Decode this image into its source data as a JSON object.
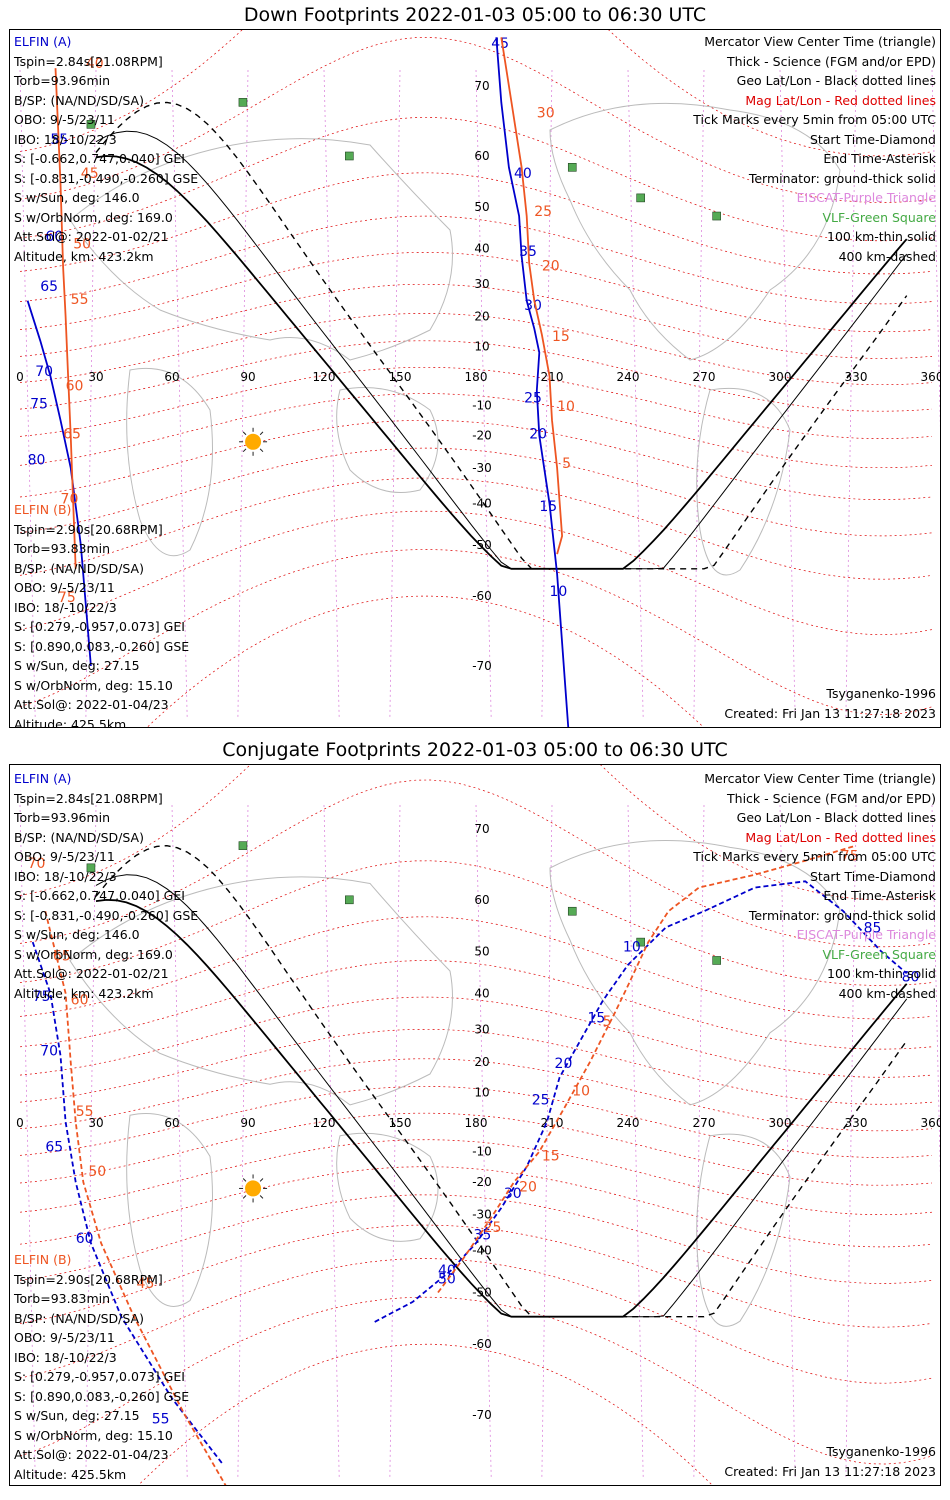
{
  "panels": [
    {
      "title": "Down Footprints 2022-01-03 05:00 to 06:30 UTC",
      "legend": {
        "view": "Mercator View Center Time (triangle)",
        "thick": "Thick - Science (FGM and/or EPD)",
        "geo": "Geo Lat/Lon - Black dotted lines",
        "mag": "Mag Lat/Lon - Red dotted lines",
        "ticks": "Tick Marks every 5min from 05:00 UTC",
        "start": "Start Time-Diamond",
        "end": "End Time-Asterisk",
        "terminator": "Terminator: ground-thick solid",
        "eiscat": "EISCAT-Purple Triangle",
        "vlf": "VLF-Green Square",
        "km100": "100 km-thin solid",
        "km400": "400 km-dashed"
      },
      "sat_a": {
        "name": "ELFIN (A)",
        "tspin": "Tspin=2.84s[21.08RPM]",
        "torb": "Torb=93.96min",
        "bsp": "B/SP: (NA/ND/SD/SA)",
        "obo": "OBO: 9/-5/23/11",
        "ibo": "IBO: 18/-10/22/3",
        "s_gei": "S: [-0.662,0.747,0.040] GEI",
        "s_gse": "S: [-0.831,-0.490,-0.260] GSE",
        "sw_sun": "S w/Sun, deg: 146.0",
        "sw_orb": "S w/OrbNorm, deg: 169.0",
        "attsol": "Att.Sol@: 2022-01-02/21",
        "alt": "Altitude, km: 423.2km"
      },
      "sat_b": {
        "name": "ELFIN (B)",
        "tspin": "Tspin=2.90s[20.68RPM]",
        "torb": "Torb=93.83min",
        "bsp": "B/SP: (NA/ND/SD/SA)",
        "obo": "OBO: 9/-5/23/11",
        "ibo": "IBO: 18/-10/22/3",
        "s_gei": "S: [0.279,-0.957,0.073] GEI",
        "s_gse": "S: [0.890,0.083,-0.260] GSE",
        "sw_sun": "S w/Sun, deg: 27.15",
        "sw_orb": "S w/OrbNorm, deg: 15.10",
        "attsol": "Att.Sol@: 2022-01-04/23",
        "alt": "Altitude: 425.5km"
      },
      "model": "Tsyganenko-1996",
      "created": "Created: Fri Jan 13 11:27:18 2023"
    },
    {
      "title": "Conjugate Footprints 2022-01-03 05:00 to 06:30 UTC",
      "legend": {
        "view": "Mercator View Center Time (triangle)",
        "thick": "Thick - Science (FGM and/or EPD)",
        "geo": "Geo Lat/Lon - Black dotted lines",
        "mag": "Mag Lat/Lon - Red dotted lines",
        "ticks": "Tick Marks every 5min from 05:00 UTC",
        "start": "Start Time-Diamond",
        "end": "End Time-Asterisk",
        "terminator": "Terminator: ground-thick solid",
        "eiscat": "EISCAT-Purple Triangle",
        "vlf": "VLF-Green Square",
        "km100": "100 km-thin solid",
        "km400": "400 km-dashed"
      },
      "sat_a": {
        "name": "ELFIN (A)",
        "tspin": "Tspin=2.84s[21.08RPM]",
        "torb": "Torb=93.96min",
        "bsp": "B/SP: (NA/ND/SD/SA)",
        "obo": "OBO: 9/-5/23/11",
        "ibo": "IBO: 18/-10/22/3",
        "s_gei": "S: [-0.662,0.747,0.040] GEI",
        "s_gse": "S: [-0.831,-0.490,-0.260] GSE",
        "sw_sun": "S w/Sun, deg: 146.0",
        "sw_orb": "S w/OrbNorm, deg: 169.0",
        "attsol": "Att.Sol@: 2022-01-02/21",
        "alt": "Altitude, km: 423.2km"
      },
      "sat_b": {
        "name": "ELFIN (B)",
        "tspin": "Tspin=2.90s[20.68RPM]",
        "torb": "Torb=93.83min",
        "bsp": "B/SP: (NA/ND/SD/SA)",
        "obo": "OBO: 9/-5/23/11",
        "ibo": "IBO: 18/-10/22/3",
        "s_gei": "S: [0.279,-0.957,0.073] GEI",
        "s_gse": "S: [0.890,0.083,-0.260] GSE",
        "sw_sun": "S w/Sun, deg: 27.15",
        "sw_orb": "S w/OrbNorm, deg: 15.10",
        "attsol": "Att.Sol@: 2022-01-04/23",
        "alt": "Altitude: 425.5km"
      },
      "model": "Tsyganenko-1996",
      "created": "Created: Fri Jan 13 11:27:18 2023"
    }
  ],
  "chart_data": [
    {
      "type": "line",
      "title": "Down Footprints 2022-01-03 05:00 to 06:30 UTC",
      "xlim": [
        0,
        360
      ],
      "ylim": [
        -80,
        75
      ],
      "x_ticks": [
        "0",
        "30",
        "60",
        "90",
        "120",
        "150",
        "180",
        "210",
        "240",
        "270",
        "300",
        "330",
        "360"
      ],
      "y_ticks": [
        "70",
        "60",
        "50",
        "40",
        "30",
        "20",
        "10",
        "0",
        "-10",
        "-20",
        "-30",
        "-40",
        "-50",
        "-60",
        "-70"
      ],
      "y_values": [
        70,
        60,
        50,
        40,
        30,
        20,
        10,
        0,
        -10,
        -20,
        -30,
        -40,
        -50,
        -60,
        -70
      ],
      "colors": {
        "sat_a": "#0000cc",
        "sat_b": "#ee5522",
        "mag_grid": "#dd0000",
        "geo_grid": "#000000",
        "eiscat": "#dd88dd",
        "vlf": "#44aa44"
      },
      "series": [
        {
          "name": "ELFIN (A)",
          "points": [
            [
              188,
              75
            ],
            [
              190,
              68
            ],
            [
              193,
              58
            ],
            [
              197,
              48
            ],
            [
              198,
              38
            ],
            [
              200,
              25
            ],
            [
              203,
              16
            ],
            [
              205,
              8
            ],
            [
              204,
              -5
            ],
            [
              205,
              -20
            ],
            [
              209,
              -40
            ],
            [
              212,
              -56
            ],
            [
              218,
              -80
            ]
          ],
          "tick_labels": [
            {
              "label": "45",
              "lon": 186,
              "lat": 74
            },
            {
              "label": "40",
              "lon": 195,
              "lat": 56
            },
            {
              "label": "35",
              "lon": 197,
              "lat": 38
            },
            {
              "label": "30",
              "lon": 199,
              "lat": 22
            },
            {
              "label": "25",
              "lon": 199,
              "lat": -9
            },
            {
              "label": "20",
              "lon": 201,
              "lat": -21
            },
            {
              "label": "15",
              "lon": 205,
              "lat": -42
            },
            {
              "label": "10",
              "lon": 209,
              "lat": -60
            }
          ]
        },
        {
          "name": "ELFIN (B)",
          "points": [
            [
              190,
              75
            ],
            [
              194,
              68
            ],
            [
              198,
              58
            ],
            [
              200,
              48
            ],
            [
              201,
              36
            ],
            [
              203,
              25
            ],
            [
              206,
              14
            ],
            [
              209,
              0
            ],
            [
              210,
              -15
            ],
            [
              212,
              -30
            ],
            [
              214,
              -48
            ],
            [
              212,
              -52
            ]
          ],
          "tick_labels": [
            {
              "label": "30",
              "lon": 204,
              "lat": 66
            },
            {
              "label": "25",
              "lon": 203,
              "lat": 48
            },
            {
              "label": "20",
              "lon": 206,
              "lat": 34
            },
            {
              "label": "15",
              "lon": 210,
              "lat": 12
            },
            {
              "label": "10",
              "lon": 212,
              "lat": -12
            },
            {
              "label": "5",
              "lon": 214,
              "lat": -30
            }
          ]
        },
        {
          "name": "ELFIN (A) west",
          "points": [
            [
              3,
              25
            ],
            [
              8,
              12
            ],
            [
              12,
              0
            ],
            [
              16,
              -15
            ],
            [
              20,
              -30
            ],
            [
              24,
              -50
            ],
            [
              28,
              -70
            ]
          ],
          "tick_labels": [
            {
              "label": "55",
              "lon": 12,
              "lat": 62
            },
            {
              "label": "60",
              "lon": 10,
              "lat": 42
            },
            {
              "label": "65",
              "lon": 8,
              "lat": 28
            },
            {
              "label": "70",
              "lon": 6,
              "lat": 0
            },
            {
              "label": "75",
              "lon": 4,
              "lat": -11
            },
            {
              "label": "80",
              "lon": 3,
              "lat": -29
            }
          ]
        },
        {
          "name": "ELFIN (B) west",
          "points": [
            [
              14,
              72
            ],
            [
              16,
              55
            ],
            [
              17,
              35
            ],
            [
              18,
              20
            ],
            [
              19,
              0
            ],
            [
              20,
              -20
            ],
            [
              21,
              -40
            ],
            [
              22,
              -55
            ]
          ],
          "tick_labels": [
            {
              "label": "40",
              "lon": 26,
              "lat": 72
            },
            {
              "label": "45",
              "lon": 24,
              "lat": 56
            },
            {
              "label": "50",
              "lon": 21,
              "lat": 40
            },
            {
              "label": "55",
              "lon": 20,
              "lat": 24
            },
            {
              "label": "60",
              "lon": 18,
              "lat": -5
            },
            {
              "label": "65",
              "lon": 17,
              "lat": -21
            },
            {
              "label": "70",
              "lon": 16,
              "lat": -40
            },
            {
              "label": "75",
              "lon": 15,
              "lat": -61
            }
          ]
        }
      ]
    },
    {
      "type": "line",
      "title": "Conjugate Footprints 2022-01-03 05:00 to 06:30 UTC",
      "xlim": [
        0,
        360
      ],
      "ylim": [
        -80,
        75
      ],
      "x_ticks": [
        "0",
        "30",
        "60",
        "90",
        "120",
        "150",
        "180",
        "210",
        "240",
        "270",
        "300",
        "330",
        "360"
      ],
      "y_ticks": [
        "70",
        "60",
        "50",
        "40",
        "30",
        "20",
        "10",
        "0",
        "-10",
        "-20",
        "-30",
        "-40",
        "-50",
        "-60",
        "-70"
      ],
      "y_values": [
        70,
        60,
        50,
        40,
        30,
        20,
        10,
        0,
        -10,
        -20,
        -30,
        -40,
        -50,
        -60,
        -70
      ],
      "colors": {
        "sat_a": "#0000cc",
        "sat_b": "#ee5522",
        "mag_grid": "#dd0000",
        "geo_grid": "#000000",
        "eiscat": "#dd88dd",
        "vlf": "#44aa44"
      },
      "series": [
        {
          "name": "ELFIN (A)",
          "points": [
            [
              140,
              -56
            ],
            [
              155,
              -52
            ],
            [
              170,
              -45
            ],
            [
              180,
              -38
            ],
            [
              190,
              -28
            ],
            [
              200,
              -15
            ],
            [
              208,
              0
            ],
            [
              213,
              15
            ],
            [
              220,
              25
            ],
            [
              230,
              38
            ],
            [
              240,
              47
            ],
            [
              255,
              55
            ],
            [
              270,
              58
            ],
            [
              290,
              62
            ],
            [
              310,
              63
            ],
            [
              325,
              58
            ],
            [
              340,
              50
            ],
            [
              350,
              45
            ]
          ],
          "tick_labels": [
            {
              "label": "50",
              "lon": 165,
              "lat": -48
            },
            {
              "label": "40",
              "lon": 165,
              "lat": -46
            },
            {
              "label": "35",
              "lon": 179,
              "lat": -37
            },
            {
              "label": "30",
              "lon": 191,
              "lat": -25
            },
            {
              "label": "25",
              "lon": 202,
              "lat": 6
            },
            {
              "label": "20",
              "lon": 211,
              "lat": 18
            },
            {
              "label": "15",
              "lon": 224,
              "lat": 32
            },
            {
              "label": "10",
              "lon": 238,
              "lat": 50
            },
            {
              "label": "85",
              "lon": 333,
              "lat": 54
            },
            {
              "label": "80",
              "lon": 348,
              "lat": 43
            }
          ]
        },
        {
          "name": "ELFIN (B)",
          "points": [
            [
              165,
              -50
            ],
            [
              175,
              -42
            ],
            [
              185,
              -32
            ],
            [
              195,
              -20
            ],
            [
              205,
              -10
            ],
            [
              215,
              5
            ],
            [
              225,
              20
            ],
            [
              235,
              35
            ],
            [
              240,
              42
            ],
            [
              248,
              52
            ],
            [
              256,
              58
            ],
            [
              268,
              62
            ],
            [
              290,
              64
            ],
            [
              310,
              66
            ],
            [
              330,
              68
            ]
          ],
          "tick_labels": [
            {
              "label": "25",
              "lon": 183,
              "lat": -35
            },
            {
              "label": "20",
              "lon": 197,
              "lat": -23
            },
            {
              "label": "15",
              "lon": 206,
              "lat": -13
            },
            {
              "label": "10",
              "lon": 218,
              "lat": 9
            },
            {
              "label": "5",
              "lon": 230,
              "lat": 31
            },
            {
              "label": "75",
              "lon": 324,
              "lat": 66
            }
          ]
        },
        {
          "name": "ELFIN (A) west",
          "points": [
            [
              5,
              52
            ],
            [
              12,
              40
            ],
            [
              16,
              22
            ],
            [
              18,
              0
            ],
            [
              22,
              -20
            ],
            [
              28,
              -38
            ],
            [
              40,
              -55
            ],
            [
              60,
              -68
            ],
            [
              80,
              -75
            ]
          ],
          "tick_labels": [
            {
              "label": "75",
              "lon": 5,
              "lat": 38
            },
            {
              "label": "70",
              "lon": 8,
              "lat": 22
            },
            {
              "label": "65",
              "lon": 10,
              "lat": -10
            },
            {
              "label": "60",
              "lon": 22,
              "lat": -38
            },
            {
              "label": "55",
              "lon": 52,
              "lat": -71
            }
          ]
        },
        {
          "name": "ELFIN (B) west",
          "points": [
            [
              10,
              58
            ],
            [
              18,
              40
            ],
            [
              20,
              20
            ],
            [
              22,
              0
            ],
            [
              25,
              -20
            ],
            [
              32,
              -38
            ],
            [
              45,
              -55
            ],
            [
              65,
              -70
            ],
            [
              85,
              -78
            ]
          ],
          "tick_labels": [
            {
              "label": "70",
              "lon": 3,
              "lat": 65
            },
            {
              "label": "65",
              "lon": 13,
              "lat": 48
            },
            {
              "label": "60",
              "lon": 20,
              "lat": 37
            },
            {
              "label": "55",
              "lon": 22,
              "lat": 2
            },
            {
              "label": "50",
              "lon": 27,
              "lat": -18
            },
            {
              "label": "45",
              "lon": 46,
              "lat": -49
            }
          ]
        }
      ]
    }
  ]
}
